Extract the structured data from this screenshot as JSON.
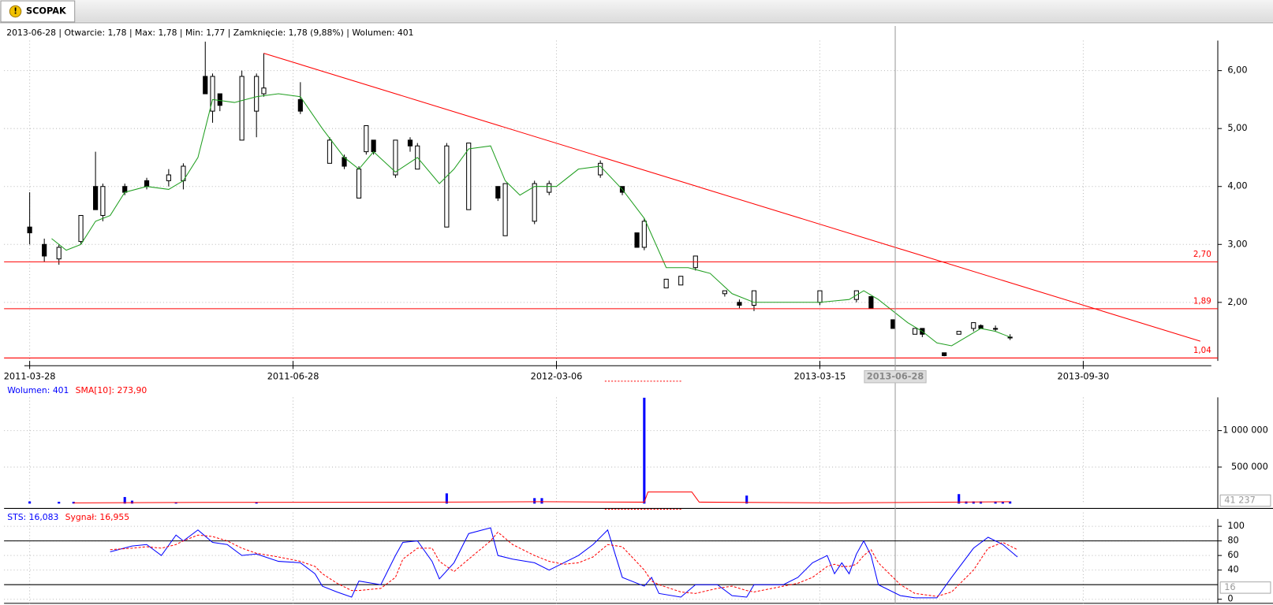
{
  "tab": {
    "title": "SCOPAK"
  },
  "chart_data": [
    {
      "type": "candlestick",
      "header": "2013-06-28 | Otwarcie: 1,78 | Max: 1,78 | Min: 1,77 | Zamknięcie: 1,78 (9,88%)  | Wolumen: 401",
      "xlim": [
        -3.5,
        161.5
      ],
      "ylim": [
        0.99,
        6.77
      ],
      "xticks": [
        {
          "value": 0,
          "label": "2011-03-28"
        },
        {
          "value": 36,
          "label": "2011-06-28"
        },
        {
          "value": 72,
          "label": "2012-03-06"
        },
        {
          "value": 108,
          "label": "2013-03-15"
        },
        {
          "value": 144,
          "label": "2013-09-30"
        }
      ],
      "yticks": [
        {
          "value": 2,
          "label": "2,00"
        },
        {
          "value": 3,
          "label": "3,00"
        },
        {
          "value": 4,
          "label": "4,00"
        },
        {
          "value": 5,
          "label": "5,00"
        },
        {
          "value": 6,
          "label": "6,00"
        }
      ],
      "grid": true,
      "cursor": {
        "value": 118.3,
        "label": "2013-06-28"
      },
      "x": [
        0,
        2,
        4,
        7,
        9,
        10,
        13,
        16,
        19,
        21,
        24,
        25,
        26,
        29,
        31,
        32,
        37,
        41,
        43,
        45,
        46,
        47,
        50,
        52,
        53,
        57,
        60,
        64,
        65,
        69,
        71,
        78,
        81,
        83,
        84,
        87,
        89,
        91,
        95,
        97,
        99,
        108,
        113,
        115,
        118,
        121,
        122,
        125,
        127,
        129,
        130,
        132,
        134
      ],
      "open": [
        3.3,
        3.0,
        2.75,
        3.05,
        4.0,
        3.5,
        4.0,
        4.1,
        4.1,
        4.1,
        5.9,
        5.3,
        5.6,
        4.8,
        5.3,
        5.6,
        5.5,
        4.4,
        4.5,
        3.8,
        4.6,
        4.8,
        4.2,
        4.8,
        4.3,
        3.3,
        3.6,
        4.0,
        3.15,
        3.4,
        3.9,
        4.2,
        4.0,
        3.2,
        2.95,
        2.25,
        2.3,
        2.6,
        2.15,
        2.0,
        1.95,
        2.0,
        2.05,
        2.1,
        1.7,
        1.45,
        1.55,
        1.13,
        1.45,
        1.55,
        1.6,
        1.55,
        1.4
      ],
      "high": [
        3.9,
        3.1,
        3.0,
        3.5,
        4.6,
        4.05,
        4.05,
        4.15,
        4.3,
        4.4,
        6.5,
        5.95,
        5.6,
        6.0,
        5.95,
        6.3,
        5.8,
        4.85,
        4.55,
        4.35,
        5.05,
        4.8,
        4.8,
        4.85,
        4.75,
        4.75,
        4.75,
        4.0,
        4.05,
        4.1,
        4.1,
        4.45,
        4.0,
        3.2,
        3.45,
        2.4,
        2.45,
        2.8,
        2.2,
        2.05,
        2.2,
        2.2,
        2.2,
        2.1,
        1.7,
        1.55,
        1.55,
        1.13,
        1.5,
        1.65,
        1.62,
        1.6,
        1.45
      ],
      "low": [
        3.0,
        2.7,
        2.65,
        3.0,
        3.6,
        3.4,
        3.85,
        3.95,
        4.0,
        3.95,
        5.6,
        5.1,
        5.3,
        4.8,
        4.85,
        5.55,
        5.25,
        4.4,
        4.3,
        3.8,
        4.55,
        4.55,
        4.15,
        4.6,
        4.3,
        3.3,
        3.6,
        3.75,
        3.15,
        3.35,
        3.85,
        4.15,
        3.85,
        2.95,
        2.9,
        2.25,
        2.3,
        2.55,
        2.1,
        1.9,
        1.85,
        1.95,
        2.0,
        1.9,
        1.55,
        1.45,
        1.4,
        1.07,
        1.45,
        1.5,
        1.55,
        1.5,
        1.35
      ],
      "close": [
        3.2,
        2.8,
        2.95,
        3.5,
        3.6,
        4.0,
        3.9,
        4.0,
        4.2,
        4.35,
        5.6,
        5.9,
        5.4,
        5.9,
        5.9,
        5.7,
        5.3,
        4.8,
        4.35,
        4.3,
        5.05,
        4.6,
        4.8,
        4.7,
        4.7,
        4.7,
        4.75,
        3.8,
        4.05,
        4.05,
        4.05,
        4.4,
        3.9,
        2.95,
        3.4,
        2.4,
        2.45,
        2.8,
        2.2,
        1.95,
        2.2,
        2.2,
        2.2,
        1.9,
        1.55,
        1.55,
        1.45,
        1.08,
        1.5,
        1.65,
        1.55,
        1.55,
        1.4
      ],
      "series": [
        {
          "color": "#1f9e1f",
          "x": [
            3,
            5,
            7,
            9,
            11,
            13,
            16,
            19,
            21,
            23,
            25,
            28,
            31,
            34,
            37,
            40,
            43,
            45,
            47,
            50,
            53,
            56,
            58,
            60,
            63,
            65,
            67,
            69,
            72,
            75,
            78,
            81,
            84,
            87,
            90,
            93,
            96,
            99,
            103,
            108,
            112,
            114,
            116,
            118,
            120,
            122,
            124,
            126,
            128,
            130,
            132,
            134
          ],
          "values": [
            3.1,
            2.9,
            3.0,
            3.4,
            3.5,
            3.9,
            4.0,
            3.95,
            4.1,
            4.5,
            5.5,
            5.45,
            5.55,
            5.6,
            5.55,
            5.0,
            4.5,
            4.3,
            4.6,
            4.25,
            4.5,
            4.05,
            4.3,
            4.65,
            4.7,
            4.1,
            3.85,
            4.0,
            4.0,
            4.3,
            4.35,
            3.95,
            3.45,
            2.6,
            2.6,
            2.5,
            2.15,
            2.0,
            2.0,
            2.0,
            2.05,
            2.2,
            2.05,
            1.85,
            1.65,
            1.5,
            1.3,
            1.25,
            1.4,
            1.55,
            1.5,
            1.4
          ]
        }
      ],
      "trendline": {
        "color": "#ff0000",
        "x": [
          32,
          160
        ],
        "values": [
          6.3,
          1.33
        ]
      },
      "hlines": [
        {
          "value": 2.7,
          "label": "2,70"
        },
        {
          "value": 1.89,
          "label": "1,89"
        },
        {
          "value": 1.04,
          "label": "1,04"
        }
      ],
      "hline_color": "#ff0000"
    },
    {
      "type": "bar",
      "ylim": [
        0,
        1455000
      ],
      "yticks": [
        {
          "value": 500000,
          "label": "500 000"
        },
        {
          "value": 1000000,
          "label": "1 000 000"
        }
      ],
      "marker": {
        "value": 41237,
        "label": "41 237"
      },
      "series": [
        {
          "name": "Wolumen: 401",
          "color": "#0000ff",
          "type": "bar",
          "x": [
            0,
            4,
            6,
            13,
            14,
            20,
            31,
            57,
            69,
            70,
            84,
            98,
            127,
            128,
            129,
            130,
            132,
            133,
            134
          ],
          "values": [
            30000,
            25000,
            25000,
            90000,
            40000,
            15000,
            20000,
            140000,
            75000,
            75000,
            1450000,
            110000,
            130000,
            30000,
            30000,
            30000,
            30000,
            30000,
            30000
          ]
        },
        {
          "name": "SMA[10]: 273,90",
          "color": "#ff0000",
          "type": "line",
          "x": [
            6,
            20,
            57,
            70,
            84,
            84.5,
            90.5,
            91.5,
            110,
            127,
            134
          ],
          "values": [
            10000,
            15000,
            20000,
            25000,
            20000,
            160000,
            160000,
            20000,
            10000,
            20000,
            25000
          ]
        }
      ]
    },
    {
      "type": "line",
      "ylim": [
        -6.7,
        118.9
      ],
      "yticks": [
        0,
        40,
        60,
        80,
        100
      ],
      "marker": {
        "value": 16,
        "label": "16"
      },
      "hlines": [
        {
          "value": 80
        },
        {
          "value": 20
        }
      ],
      "series": [
        {
          "name": "STS: 16,083",
          "color": "#0000ff",
          "dashed": false,
          "x": [
            11,
            14,
            16,
            18,
            20,
            21,
            23,
            25,
            27,
            29,
            31,
            34,
            37,
            39,
            40,
            42,
            44,
            45,
            48,
            50,
            51,
            53,
            55,
            56,
            58,
            60,
            63,
            64,
            66,
            69,
            71,
            73,
            75,
            77,
            79,
            81,
            84,
            85,
            86,
            89,
            91,
            94,
            96,
            98,
            99,
            103,
            105,
            107,
            109,
            110,
            111,
            112,
            113,
            114,
            115,
            116,
            119,
            121,
            124,
            126,
            129,
            131,
            133,
            135
          ],
          "values": [
            65,
            73,
            75,
            60,
            88,
            80,
            95,
            78,
            75,
            60,
            62,
            52,
            50,
            35,
            18,
            10,
            3,
            25,
            20,
            60,
            78,
            80,
            52,
            28,
            50,
            90,
            98,
            60,
            55,
            50,
            40,
            50,
            60,
            75,
            95,
            30,
            18,
            30,
            8,
            3,
            20,
            20,
            5,
            3,
            20,
            20,
            30,
            50,
            60,
            35,
            50,
            35,
            62,
            80,
            60,
            20,
            5,
            2,
            2,
            30,
            70,
            85,
            75,
            58
          ]
        },
        {
          "name": "Sygnał: 16,955",
          "color": "#ff0000",
          "dashed": true,
          "x": [
            11,
            14,
            16,
            18,
            20,
            21,
            23,
            25,
            27,
            29,
            31,
            34,
            37,
            39,
            40,
            42,
            44,
            45,
            48,
            50,
            51,
            53,
            55,
            56,
            58,
            60,
            63,
            64,
            66,
            69,
            71,
            73,
            75,
            77,
            79,
            81,
            84,
            85,
            86,
            89,
            91,
            94,
            96,
            98,
            99,
            103,
            105,
            107,
            109,
            110,
            111,
            112,
            113,
            114,
            115,
            116,
            119,
            121,
            124,
            126,
            129,
            131,
            133,
            135
          ],
          "values": [
            68,
            70,
            72,
            70,
            75,
            80,
            88,
            86,
            80,
            70,
            63,
            58,
            52,
            45,
            35,
            22,
            12,
            12,
            15,
            30,
            55,
            70,
            70,
            52,
            38,
            55,
            80,
            92,
            75,
            60,
            52,
            48,
            50,
            58,
            75,
            72,
            40,
            25,
            20,
            10,
            8,
            15,
            18,
            12,
            10,
            18,
            22,
            30,
            45,
            48,
            45,
            45,
            48,
            60,
            68,
            50,
            20,
            8,
            4,
            10,
            40,
            70,
            78,
            68
          ]
        }
      ]
    }
  ]
}
